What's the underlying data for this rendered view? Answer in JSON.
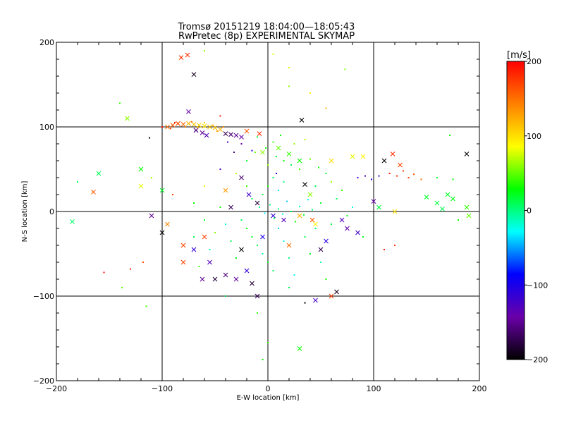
{
  "chart_data": {
    "type": "scatter",
    "title": "Tromsø 20151219 18:04:00—18:05:43",
    "subtitle": "RwPretec (8p) EXPERIMENTAL SKYMAP",
    "xlabel": "E-W location [km]",
    "ylabel": "N-S location [km]",
    "xlim": [
      -200,
      200
    ],
    "ylim": [
      -200,
      200
    ],
    "xticks": [
      "−200",
      "−100",
      "0",
      "100",
      "200"
    ],
    "yticks": [
      "−200",
      "−100",
      "0",
      "100",
      "200"
    ],
    "xtick_values": [
      -200,
      -100,
      0,
      100,
      200
    ],
    "ytick_values": [
      -200,
      -100,
      0,
      100,
      200
    ],
    "grid": true,
    "colorbar": {
      "label": "[m/s]",
      "range": [
        -200,
        200
      ],
      "ticks": [
        "200",
        "100",
        "0",
        "−100",
        "−200"
      ],
      "tick_values": [
        200,
        100,
        0,
        -100,
        -200
      ],
      "colors": [
        "#000000",
        "#6a00a8",
        "#0000ff",
        "#00ffff",
        "#00ff00",
        "#ffff00",
        "#ff8000",
        "#ff0000"
      ]
    },
    "series": [
      {
        "marker": "x",
        "points": [
          [
            -76,
            185,
            180
          ],
          [
            -82,
            182,
            170
          ],
          [
            -70,
            162,
            -190
          ],
          [
            -133,
            110,
            60
          ],
          [
            -95,
            100,
            150
          ],
          [
            -90,
            102,
            160
          ],
          [
            -85,
            104,
            165
          ],
          [
            -80,
            103,
            155
          ],
          [
            -75,
            104,
            120
          ],
          [
            -70,
            103,
            110
          ],
          [
            -65,
            102,
            105
          ],
          [
            -60,
            101,
            100
          ],
          [
            -55,
            100,
            110
          ],
          [
            -50,
            99,
            115
          ],
          [
            -45,
            97,
            120
          ],
          [
            -75,
            118,
            -140
          ],
          [
            -68,
            96,
            -160
          ],
          [
            -62,
            93,
            -150
          ],
          [
            -58,
            90,
            -130
          ],
          [
            -40,
            92,
            -170
          ],
          [
            -35,
            91,
            -160
          ],
          [
            -30,
            90,
            -150
          ],
          [
            -25,
            88,
            -140
          ],
          [
            -20,
            95,
            160
          ],
          [
            -8,
            92,
            180
          ],
          [
            32,
            108,
            -200
          ],
          [
            -5,
            70,
            60
          ],
          [
            10,
            75,
            50
          ],
          [
            20,
            68,
            40
          ],
          [
            30,
            60,
            30
          ],
          [
            60,
            60,
            100
          ],
          [
            80,
            65,
            80
          ],
          [
            90,
            65,
            90
          ],
          [
            110,
            60,
            -200
          ],
          [
            118,
            68,
            180
          ],
          [
            125,
            55,
            170
          ],
          [
            188,
            68,
            -200
          ],
          [
            -160,
            45,
            10
          ],
          [
            -165,
            23,
            160
          ],
          [
            -120,
            30,
            80
          ],
          [
            -100,
            25,
            20
          ],
          [
            -40,
            25,
            130
          ],
          [
            -35,
            5,
            -170
          ],
          [
            -25,
            40,
            -160
          ],
          [
            -18,
            20,
            -120
          ],
          [
            -10,
            10,
            -180
          ],
          [
            5,
            -5,
            -110
          ],
          [
            15,
            -10,
            -130
          ],
          [
            35,
            32,
            -200
          ],
          [
            40,
            20,
            60
          ],
          [
            30,
            -5,
            120
          ],
          [
            42,
            -10,
            160
          ],
          [
            45,
            -15,
            90
          ],
          [
            55,
            -35,
            -110
          ],
          [
            70,
            -10,
            -130
          ],
          [
            75,
            -20,
            -140
          ],
          [
            85,
            -25,
            -120
          ],
          [
            100,
            12,
            -140
          ],
          [
            105,
            5,
            15
          ],
          [
            120,
            0,
            100
          ],
          [
            150,
            17,
            20
          ],
          [
            160,
            10,
            15
          ],
          [
            170,
            20,
            20
          ],
          [
            165,
            3,
            10
          ],
          [
            175,
            15,
            25
          ],
          [
            188,
            5,
            40
          ],
          [
            190,
            -5,
            50
          ],
          [
            -185,
            -12,
            5
          ],
          [
            -110,
            -5,
            -150
          ],
          [
            -100,
            -25,
            -200
          ],
          [
            -95,
            -15,
            140
          ],
          [
            -80,
            -40,
            170
          ],
          [
            -70,
            -45,
            -110
          ],
          [
            -60,
            -30,
            170
          ],
          [
            -55,
            -60,
            -130
          ],
          [
            -50,
            -80,
            -180
          ],
          [
            -40,
            -75,
            -160
          ],
          [
            -30,
            -80,
            -150
          ],
          [
            -20,
            -70,
            -110
          ],
          [
            -15,
            -85,
            -180
          ],
          [
            -10,
            -100,
            -170
          ],
          [
            -25,
            -45,
            -200
          ],
          [
            -5,
            -30,
            -100
          ],
          [
            50,
            -45,
            -170
          ],
          [
            60,
            -100,
            170
          ],
          [
            65,
            -95,
            -190
          ],
          [
            45,
            -105,
            -120
          ],
          [
            30,
            -162,
            30
          ],
          [
            20,
            -40,
            150
          ],
          [
            -80,
            -60,
            170
          ],
          [
            -62,
            -80,
            -150
          ],
          [
            -120,
            50,
            30
          ]
        ]
      },
      {
        "marker": "dot",
        "points": [
          [
            -82,
            182,
            190
          ],
          [
            -60,
            190,
            60
          ],
          [
            5,
            186,
            80
          ],
          [
            20,
            170,
            80
          ],
          [
            73,
            168,
            60
          ],
          [
            -140,
            128,
            40
          ],
          [
            20,
            148,
            60
          ],
          [
            40,
            140,
            90
          ],
          [
            55,
            122,
            120
          ],
          [
            -45,
            113,
            190
          ],
          [
            -100,
            100,
            190
          ],
          [
            -92,
            98,
            175
          ],
          [
            -88,
            105,
            185
          ],
          [
            -78,
            100,
            140
          ],
          [
            -72,
            106,
            150
          ],
          [
            -66,
            99,
            125
          ],
          [
            -60,
            105,
            110
          ],
          [
            -52,
            102,
            120
          ],
          [
            -48,
            95,
            130
          ],
          [
            -42,
            100,
            140
          ],
          [
            -112,
            87,
            -200
          ],
          [
            -10,
            88,
            20
          ],
          [
            5,
            82,
            40
          ],
          [
            12,
            90,
            30
          ],
          [
            25,
            80,
            60
          ],
          [
            35,
            85,
            70
          ],
          [
            -2,
            75,
            30
          ],
          [
            8,
            65,
            20
          ],
          [
            15,
            60,
            30
          ],
          [
            22,
            55,
            10
          ],
          [
            30,
            50,
            40
          ],
          [
            40,
            62,
            50
          ],
          [
            48,
            52,
            30
          ],
          [
            55,
            45,
            20
          ],
          [
            60,
            35,
            60
          ],
          [
            85,
            40,
            -120
          ],
          [
            92,
            42,
            -130
          ],
          [
            98,
            38,
            -110
          ],
          [
            105,
            42,
            -120
          ],
          [
            115,
            45,
            190
          ],
          [
            122,
            42,
            180
          ],
          [
            128,
            48,
            170
          ],
          [
            133,
            40,
            170
          ],
          [
            138,
            44,
            160
          ],
          [
            145,
            38,
            150
          ],
          [
            160,
            40,
            20
          ],
          [
            175,
            38,
            30
          ],
          [
            172,
            90,
            30
          ],
          [
            -180,
            35,
            10
          ],
          [
            -110,
            40,
            60
          ],
          [
            -90,
            20,
            170
          ],
          [
            -70,
            10,
            30
          ],
          [
            -60,
            30,
            80
          ],
          [
            -45,
            50,
            -120
          ],
          [
            -30,
            45,
            70
          ],
          [
            -20,
            30,
            40
          ],
          [
            -15,
            15,
            10
          ],
          [
            -8,
            5,
            0
          ],
          [
            -3,
            -2,
            -30
          ],
          [
            2,
            8,
            5
          ],
          [
            6,
            -8,
            15
          ],
          [
            10,
            3,
            0
          ],
          [
            14,
            -3,
            -20
          ],
          [
            18,
            12,
            -40
          ],
          [
            22,
            0,
            10
          ],
          [
            26,
            -12,
            30
          ],
          [
            30,
            6,
            -10
          ],
          [
            34,
            -4,
            20
          ],
          [
            38,
            14,
            -30
          ],
          [
            42,
            2,
            0
          ],
          [
            -5,
            20,
            20
          ],
          [
            0,
            30,
            30
          ],
          [
            5,
            40,
            10
          ],
          [
            10,
            25,
            -20
          ],
          [
            15,
            35,
            0
          ],
          [
            -25,
            -10,
            10
          ],
          [
            -20,
            -20,
            30
          ],
          [
            -15,
            -30,
            20
          ],
          [
            -10,
            -40,
            10
          ],
          [
            -5,
            -50,
            -10
          ],
          [
            0,
            -60,
            20
          ],
          [
            5,
            -70,
            10
          ],
          [
            10,
            -20,
            -40
          ],
          [
            15,
            -35,
            -20
          ],
          [
            20,
            -55,
            0
          ],
          [
            25,
            -75,
            -30
          ],
          [
            -30,
            -55,
            20
          ],
          [
            -35,
            -35,
            10
          ],
          [
            -40,
            -15,
            -20
          ],
          [
            -45,
            5,
            30
          ],
          [
            -50,
            -25,
            60
          ],
          [
            -55,
            -45,
            -10
          ],
          [
            -60,
            -10,
            20
          ],
          [
            -65,
            -65,
            40
          ],
          [
            -70,
            -30,
            10
          ],
          [
            35,
            -30,
            10
          ],
          [
            40,
            -50,
            20
          ],
          [
            45,
            -20,
            0
          ],
          [
            50,
            -60,
            -10
          ],
          [
            55,
            -80,
            30
          ],
          [
            60,
            -15,
            20
          ],
          [
            65,
            15,
            10
          ],
          [
            70,
            25,
            40
          ],
          [
            75,
            -5,
            30
          ],
          [
            80,
            5,
            -20
          ],
          [
            -155,
            -72,
            190
          ],
          [
            -130,
            -68,
            180
          ],
          [
            -118,
            -60,
            170
          ],
          [
            -115,
            -112,
            40
          ],
          [
            -138,
            -90,
            50
          ],
          [
            -10,
            -120,
            40
          ],
          [
            0,
            -155,
            40
          ],
          [
            35,
            -108,
            -200
          ],
          [
            -5,
            -175,
            30
          ],
          [
            90,
            -30,
            20
          ],
          [
            110,
            -45,
            190
          ],
          [
            120,
            -40,
            180
          ],
          [
            180,
            -10,
            30
          ],
          [
            -40,
            -100,
            10
          ],
          [
            20,
            -90,
            10
          ],
          [
            -20,
            60,
            20
          ],
          [
            -12,
            70,
            50
          ],
          [
            0,
            55,
            60
          ],
          [
            45,
            30,
            10
          ],
          [
            50,
            10,
            20
          ],
          [
            -25,
            80,
            -140
          ],
          [
            -32,
            70,
            -160
          ],
          [
            -38,
            82,
            -130
          ],
          [
            -15,
            72,
            -110
          ],
          [
            8,
            45,
            -100
          ]
        ]
      }
    ]
  }
}
